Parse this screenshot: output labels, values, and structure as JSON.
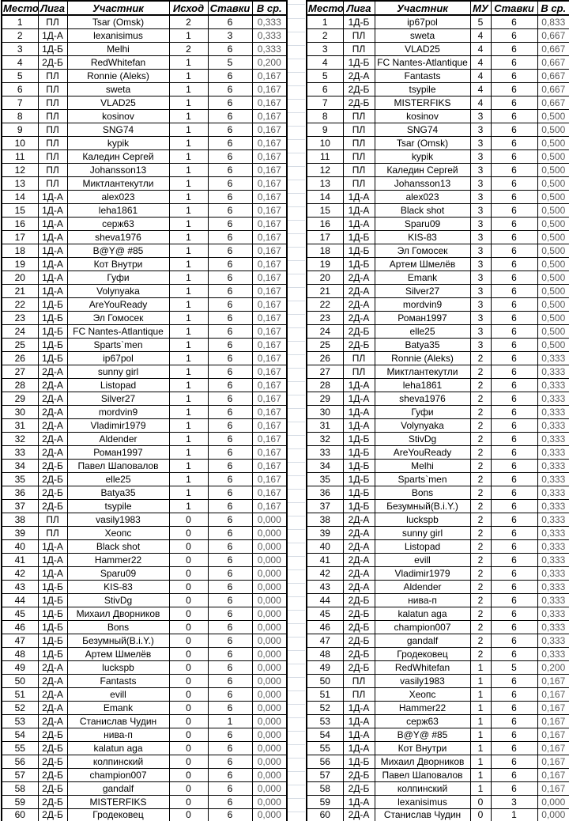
{
  "colors": {
    "border": "#000000",
    "text": "#000000",
    "avg_column_text": "#595959",
    "gap_gridline": "#d6dce4",
    "background": "#ffffff"
  },
  "tables": [
    {
      "name": "rating-by-outcome",
      "headers": [
        "Место",
        "Лига",
        "Участник",
        "Исход",
        "Ставки",
        "В ср."
      ],
      "rows": [
        [
          "1",
          "ПЛ",
          "Tsar (Omsk)",
          "2",
          "6",
          "0,333"
        ],
        [
          "2",
          "1Д-А",
          "lexanisimus",
          "1",
          "3",
          "0,333"
        ],
        [
          "3",
          "1Д-Б",
          "Melhi",
          "2",
          "6",
          "0,333"
        ],
        [
          "4",
          "2Д-Б",
          "RedWhitefan",
          "1",
          "5",
          "0,200"
        ],
        [
          "5",
          "ПЛ",
          "Ronnie (Aleks)",
          "1",
          "6",
          "0,167"
        ],
        [
          "6",
          "ПЛ",
          "sweta",
          "1",
          "6",
          "0,167"
        ],
        [
          "7",
          "ПЛ",
          "VLAD25",
          "1",
          "6",
          "0,167"
        ],
        [
          "8",
          "ПЛ",
          "kosinov",
          "1",
          "6",
          "0,167"
        ],
        [
          "9",
          "ПЛ",
          "SNG74",
          "1",
          "6",
          "0,167"
        ],
        [
          "10",
          "ПЛ",
          "kypik",
          "1",
          "6",
          "0,167"
        ],
        [
          "11",
          "ПЛ",
          "Каледин Сергей",
          "1",
          "6",
          "0,167"
        ],
        [
          "12",
          "ПЛ",
          "Johansson13",
          "1",
          "6",
          "0,167"
        ],
        [
          "13",
          "ПЛ",
          "Миктлантекутли",
          "1",
          "6",
          "0,167"
        ],
        [
          "14",
          "1Д-А",
          "alex023",
          "1",
          "6",
          "0,167"
        ],
        [
          "15",
          "1Д-А",
          "leha1861",
          "1",
          "6",
          "0,167"
        ],
        [
          "16",
          "1Д-А",
          "серж63",
          "1",
          "6",
          "0,167"
        ],
        [
          "17",
          "1Д-А",
          "sheva1976",
          "1",
          "6",
          "0,167"
        ],
        [
          "18",
          "1Д-А",
          "B@Y@ #85",
          "1",
          "6",
          "0,167"
        ],
        [
          "19",
          "1Д-А",
          "Кот Внутри",
          "1",
          "6",
          "0,167"
        ],
        [
          "20",
          "1Д-А",
          "Гуфи",
          "1",
          "6",
          "0,167"
        ],
        [
          "21",
          "1Д-А",
          "Volynyaka",
          "1",
          "6",
          "0,167"
        ],
        [
          "22",
          "1Д-Б",
          "AreYouReady",
          "1",
          "6",
          "0,167"
        ],
        [
          "23",
          "1Д-Б",
          "Эл Гомосек",
          "1",
          "6",
          "0,167"
        ],
        [
          "24",
          "1Д-Б",
          "FC Nantes-Atlantique",
          "1",
          "6",
          "0,167"
        ],
        [
          "25",
          "1Д-Б",
          "Sparts`men",
          "1",
          "6",
          "0,167"
        ],
        [
          "26",
          "1Д-Б",
          "ip67pol",
          "1",
          "6",
          "0,167"
        ],
        [
          "27",
          "2Д-А",
          "sunny girl",
          "1",
          "6",
          "0,167"
        ],
        [
          "28",
          "2Д-А",
          "Listopad",
          "1",
          "6",
          "0,167"
        ],
        [
          "29",
          "2Д-А",
          "Silver27",
          "1",
          "6",
          "0,167"
        ],
        [
          "30",
          "2Д-А",
          "mordvin9",
          "1",
          "6",
          "0,167"
        ],
        [
          "31",
          "2Д-А",
          "Vladimir1979",
          "1",
          "6",
          "0,167"
        ],
        [
          "32",
          "2Д-А",
          "Aldender",
          "1",
          "6",
          "0,167"
        ],
        [
          "33",
          "2Д-А",
          "Роман1997",
          "1",
          "6",
          "0,167"
        ],
        [
          "34",
          "2Д-Б",
          "Павел Шаповалов",
          "1",
          "6",
          "0,167"
        ],
        [
          "35",
          "2Д-Б",
          "elle25",
          "1",
          "6",
          "0,167"
        ],
        [
          "36",
          "2Д-Б",
          "Batya35",
          "1",
          "6",
          "0,167"
        ],
        [
          "37",
          "2Д-Б",
          "tsypile",
          "1",
          "6",
          "0,167"
        ],
        [
          "38",
          "ПЛ",
          "vasily1983",
          "0",
          "6",
          "0,000"
        ],
        [
          "39",
          "ПЛ",
          "Хеопс",
          "0",
          "6",
          "0,000"
        ],
        [
          "40",
          "1Д-А",
          "Black shot",
          "0",
          "6",
          "0,000"
        ],
        [
          "41",
          "1Д-А",
          "Hammer22",
          "0",
          "6",
          "0,000"
        ],
        [
          "42",
          "1Д-А",
          "Sparu09",
          "0",
          "6",
          "0,000"
        ],
        [
          "43",
          "1Д-Б",
          "KIS-83",
          "0",
          "6",
          "0,000"
        ],
        [
          "44",
          "1Д-Б",
          "StivDg",
          "0",
          "6",
          "0,000"
        ],
        [
          "45",
          "1Д-Б",
          "Михаил Дворников",
          "0",
          "6",
          "0,000"
        ],
        [
          "46",
          "1Д-Б",
          "Bons",
          "0",
          "6",
          "0,000"
        ],
        [
          "47",
          "1Д-Б",
          "Безумный(B.i.Y.)",
          "0",
          "6",
          "0,000"
        ],
        [
          "48",
          "1Д-Б",
          "Артем Шмелёв",
          "0",
          "6",
          "0,000"
        ],
        [
          "49",
          "2Д-А",
          "luckspb",
          "0",
          "6",
          "0,000"
        ],
        [
          "50",
          "2Д-А",
          "Fantasts",
          "0",
          "6",
          "0,000"
        ],
        [
          "51",
          "2Д-А",
          "evill",
          "0",
          "6",
          "0,000"
        ],
        [
          "52",
          "2Д-А",
          "Emank",
          "0",
          "6",
          "0,000"
        ],
        [
          "53",
          "2Д-А",
          "Станислав Чудин",
          "0",
          "1",
          "0,000"
        ],
        [
          "54",
          "2Д-Б",
          "нива-п",
          "0",
          "6",
          "0,000"
        ],
        [
          "55",
          "2Д-Б",
          "kalatun aga",
          "0",
          "6",
          "0,000"
        ],
        [
          "56",
          "2Д-Б",
          "колпинский",
          "0",
          "6",
          "0,000"
        ],
        [
          "57",
          "2Д-Б",
          "champion007",
          "0",
          "6",
          "0,000"
        ],
        [
          "58",
          "2Д-Б",
          "gandalf",
          "0",
          "6",
          "0,000"
        ],
        [
          "59",
          "2Д-Б",
          "MISTERFIKS",
          "0",
          "6",
          "0,000"
        ],
        [
          "60",
          "2Д-Б",
          "Гродековец",
          "0",
          "6",
          "0,000"
        ]
      ]
    },
    {
      "name": "rating-by-mu",
      "headers": [
        "Место",
        "Лига",
        "Участник",
        "МУ",
        "Ставки",
        "В ср."
      ],
      "rows": [
        [
          "1",
          "1Д-Б",
          "ip67pol",
          "5",
          "6",
          "0,833"
        ],
        [
          "2",
          "ПЛ",
          "sweta",
          "4",
          "6",
          "0,667"
        ],
        [
          "3",
          "ПЛ",
          "VLAD25",
          "4",
          "6",
          "0,667"
        ],
        [
          "4",
          "1Д-Б",
          "FC Nantes-Atlantique",
          "4",
          "6",
          "0,667"
        ],
        [
          "5",
          "2Д-А",
          "Fantasts",
          "4",
          "6",
          "0,667"
        ],
        [
          "6",
          "2Д-Б",
          "tsypile",
          "4",
          "6",
          "0,667"
        ],
        [
          "7",
          "2Д-Б",
          "MISTERFIKS",
          "4",
          "6",
          "0,667"
        ],
        [
          "8",
          "ПЛ",
          "kosinov",
          "3",
          "6",
          "0,500"
        ],
        [
          "9",
          "ПЛ",
          "SNG74",
          "3",
          "6",
          "0,500"
        ],
        [
          "10",
          "ПЛ",
          "Tsar (Omsk)",
          "3",
          "6",
          "0,500"
        ],
        [
          "11",
          "ПЛ",
          "kypik",
          "3",
          "6",
          "0,500"
        ],
        [
          "12",
          "ПЛ",
          "Каледин Сергей",
          "3",
          "6",
          "0,500"
        ],
        [
          "13",
          "ПЛ",
          "Johansson13",
          "3",
          "6",
          "0,500"
        ],
        [
          "14",
          "1Д-А",
          "alex023",
          "3",
          "6",
          "0,500"
        ],
        [
          "15",
          "1Д-А",
          "Black shot",
          "3",
          "6",
          "0,500"
        ],
        [
          "16",
          "1Д-А",
          "Sparu09",
          "3",
          "6",
          "0,500"
        ],
        [
          "17",
          "1Д-Б",
          "KIS-83",
          "3",
          "6",
          "0,500"
        ],
        [
          "18",
          "1Д-Б",
          "Эл Гомосек",
          "3",
          "6",
          "0,500"
        ],
        [
          "19",
          "1Д-Б",
          "Артем Шмелёв",
          "3",
          "6",
          "0,500"
        ],
        [
          "20",
          "2Д-А",
          "Emank",
          "3",
          "6",
          "0,500"
        ],
        [
          "21",
          "2Д-А",
          "Silver27",
          "3",
          "6",
          "0,500"
        ],
        [
          "22",
          "2Д-А",
          "mordvin9",
          "3",
          "6",
          "0,500"
        ],
        [
          "23",
          "2Д-А",
          "Роман1997",
          "3",
          "6",
          "0,500"
        ],
        [
          "24",
          "2Д-Б",
          "elle25",
          "3",
          "6",
          "0,500"
        ],
        [
          "25",
          "2Д-Б",
          "Batya35",
          "3",
          "6",
          "0,500"
        ],
        [
          "26",
          "ПЛ",
          "Ronnie (Aleks)",
          "2",
          "6",
          "0,333"
        ],
        [
          "27",
          "ПЛ",
          "Миктлантекутли",
          "2",
          "6",
          "0,333"
        ],
        [
          "28",
          "1Д-А",
          "leha1861",
          "2",
          "6",
          "0,333"
        ],
        [
          "29",
          "1Д-А",
          "sheva1976",
          "2",
          "6",
          "0,333"
        ],
        [
          "30",
          "1Д-А",
          "Гуфи",
          "2",
          "6",
          "0,333"
        ],
        [
          "31",
          "1Д-А",
          "Volynyaka",
          "2",
          "6",
          "0,333"
        ],
        [
          "32",
          "1Д-Б",
          "StivDg",
          "2",
          "6",
          "0,333"
        ],
        [
          "33",
          "1Д-Б",
          "AreYouReady",
          "2",
          "6",
          "0,333"
        ],
        [
          "34",
          "1Д-Б",
          "Melhi",
          "2",
          "6",
          "0,333"
        ],
        [
          "35",
          "1Д-Б",
          "Sparts`men",
          "2",
          "6",
          "0,333"
        ],
        [
          "36",
          "1Д-Б",
          "Bons",
          "2",
          "6",
          "0,333"
        ],
        [
          "37",
          "1Д-Б",
          "Безумный(B.i.Y.)",
          "2",
          "6",
          "0,333"
        ],
        [
          "38",
          "2Д-А",
          "luckspb",
          "2",
          "6",
          "0,333"
        ],
        [
          "39",
          "2Д-А",
          "sunny girl",
          "2",
          "6",
          "0,333"
        ],
        [
          "40",
          "2Д-А",
          "Listopad",
          "2",
          "6",
          "0,333"
        ],
        [
          "41",
          "2Д-А",
          "evill",
          "2",
          "6",
          "0,333"
        ],
        [
          "42",
          "2Д-А",
          "Vladimir1979",
          "2",
          "6",
          "0,333"
        ],
        [
          "43",
          "2Д-А",
          "Aldender",
          "2",
          "6",
          "0,333"
        ],
        [
          "44",
          "2Д-Б",
          "нива-п",
          "2",
          "6",
          "0,333"
        ],
        [
          "45",
          "2Д-Б",
          "kalatun aga",
          "2",
          "6",
          "0,333"
        ],
        [
          "46",
          "2Д-Б",
          "champion007",
          "2",
          "6",
          "0,333"
        ],
        [
          "47",
          "2Д-Б",
          "gandalf",
          "2",
          "6",
          "0,333"
        ],
        [
          "48",
          "2Д-Б",
          "Гродековец",
          "2",
          "6",
          "0,333"
        ],
        [
          "49",
          "2Д-Б",
          "RedWhitefan",
          "1",
          "5",
          "0,200"
        ],
        [
          "50",
          "ПЛ",
          "vasily1983",
          "1",
          "6",
          "0,167"
        ],
        [
          "51",
          "ПЛ",
          "Хеопс",
          "1",
          "6",
          "0,167"
        ],
        [
          "52",
          "1Д-А",
          "Hammer22",
          "1",
          "6",
          "0,167"
        ],
        [
          "53",
          "1Д-А",
          "серж63",
          "1",
          "6",
          "0,167"
        ],
        [
          "54",
          "1Д-А",
          "B@Y@ #85",
          "1",
          "6",
          "0,167"
        ],
        [
          "55",
          "1Д-А",
          "Кот Внутри",
          "1",
          "6",
          "0,167"
        ],
        [
          "56",
          "1Д-Б",
          "Михаил Дворников",
          "1",
          "6",
          "0,167"
        ],
        [
          "57",
          "2Д-Б",
          "Павел Шаповалов",
          "1",
          "6",
          "0,167"
        ],
        [
          "58",
          "2Д-Б",
          "колпинский",
          "1",
          "6",
          "0,167"
        ],
        [
          "59",
          "1Д-А",
          "lexanisimus",
          "0",
          "3",
          "0,000"
        ],
        [
          "60",
          "2Д-А",
          "Станислав Чудин",
          "0",
          "1",
          "0,000"
        ]
      ]
    }
  ]
}
